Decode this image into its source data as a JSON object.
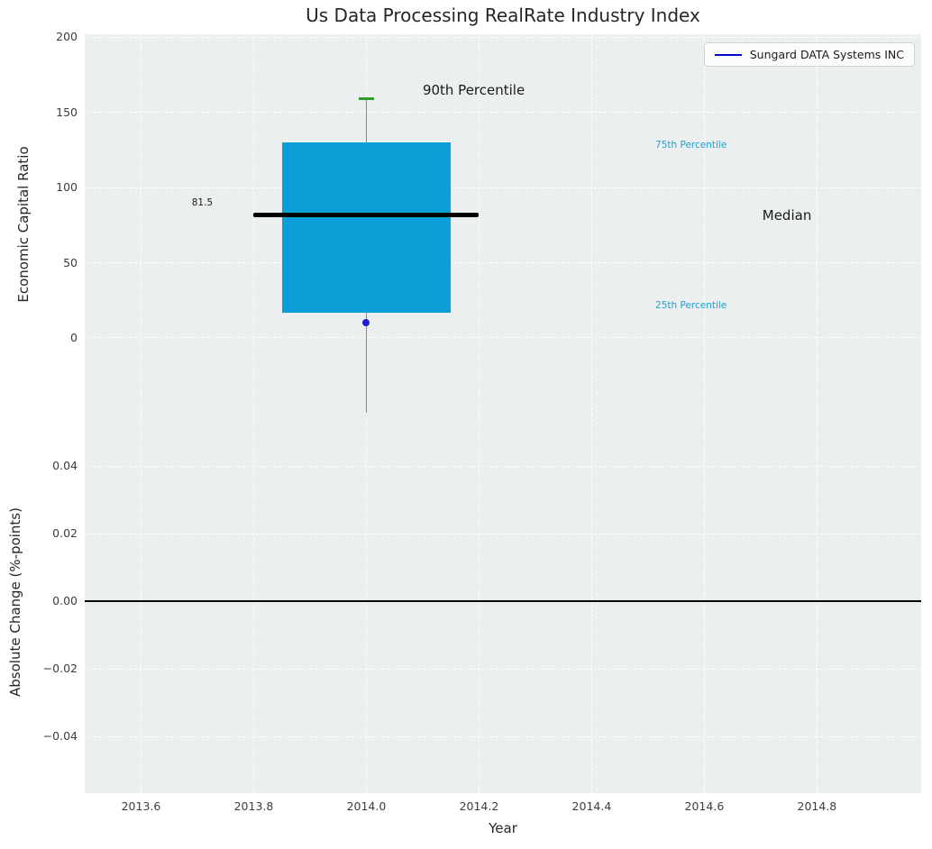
{
  "chart_data": [
    {
      "type": "boxplot",
      "title": "Us Data Processing RealRate Industry Index",
      "ylabel": "Economic Capital Ratio",
      "xlim": [
        2013.5,
        2014.985
      ],
      "ylim": [
        -51,
        202
      ],
      "yticks": [
        200,
        150,
        100,
        50,
        0
      ],
      "xticks": [
        2013.6,
        2013.8,
        2014.0,
        2014.2,
        2014.4,
        2014.6,
        2014.8
      ],
      "xtick_labels": [
        "2013.6",
        "2013.8",
        "2014.0",
        "2014.2",
        "2014.4",
        "2014.6",
        "2014.8"
      ],
      "grid": true,
      "x_center": 2014.0,
      "box_width": 0.3,
      "median_width": 0.4,
      "cap_width": 0.028,
      "values": {
        "p25": 17,
        "median": 81.5,
        "p75": 130,
        "p90": 159,
        "whisker_low_clipped": true
      },
      "median_label": "81.5",
      "series": [
        {
          "name": "Sungard DATA Systems INC",
          "x": [
            2014.0
          ],
          "y": [
            10
          ],
          "marker": "dot"
        }
      ],
      "colors": {
        "box": "#0a9fd7",
        "median": "#000000",
        "whisker": "#8a8a8a",
        "cap_90": "#2ca02c",
        "company_dot": "#1f1fd0",
        "legend_line": "#0000cc",
        "percentile_text": "#1f9fce"
      },
      "annotations": [
        {
          "text": "90th Percentile",
          "x": 2014.1,
          "y": 165,
          "color": "#1a1a1a",
          "size": 15
        },
        {
          "text": "75th Percentile",
          "x": 2014.513,
          "y": 128,
          "color": "#1f9fce",
          "size": 10.5
        },
        {
          "text": "Median",
          "x": 2014.703,
          "y": 81.5,
          "color": "#1a1a1a",
          "size": 15
        },
        {
          "text": "25th Percentile",
          "x": 2014.513,
          "y": 21.5,
          "color": "#1f9fce",
          "size": 10.5
        },
        {
          "text": "81.5",
          "x": 2013.69,
          "y": 90,
          "color": "#1a1a1a",
          "size": 10.5
        }
      ],
      "legend": {
        "label": "Sungard DATA Systems INC",
        "position": "upper right"
      }
    },
    {
      "type": "line",
      "ylabel": "Absolute Change (%-points)",
      "xlabel": "Year",
      "ylim": [
        -0.0568,
        0.0552
      ],
      "yticks": [
        0.04,
        0.02,
        0,
        -0.02,
        -0.04
      ],
      "ytick_labels": [
        "0.04",
        "0.02",
        "0.00",
        "−0.02",
        "−0.04"
      ],
      "grid": true,
      "series": [],
      "zero_line": 0.0,
      "zero_line_color": "#000000"
    }
  ]
}
